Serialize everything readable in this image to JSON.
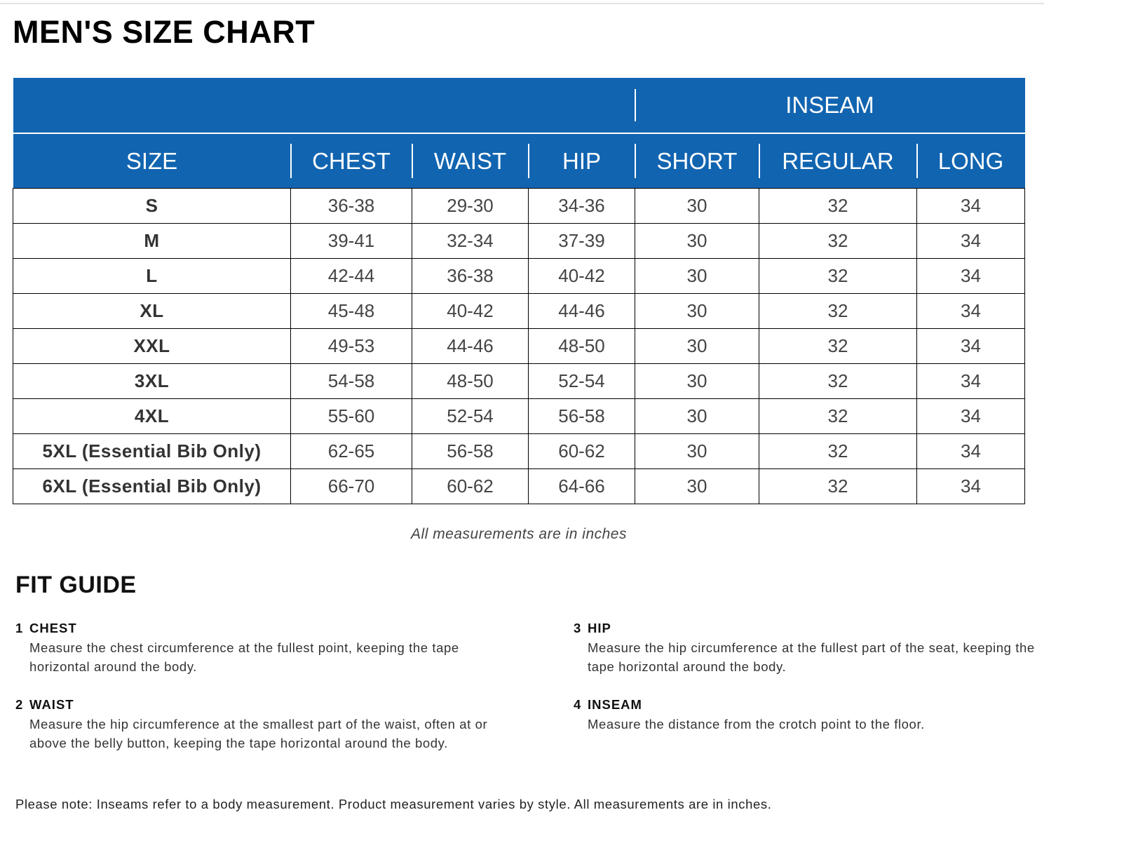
{
  "title": "MEN'S SIZE CHART",
  "table": {
    "group_header": "INSEAM",
    "columns": [
      "SIZE",
      "CHEST",
      "WAIST",
      "HIP",
      "SHORT",
      "REGULAR",
      "LONG"
    ],
    "rows": [
      [
        "S",
        "36-38",
        "29-30",
        "34-36",
        "30",
        "32",
        "34"
      ],
      [
        "M",
        "39-41",
        "32-34",
        "37-39",
        "30",
        "32",
        "34"
      ],
      [
        "L",
        "42-44",
        "36-38",
        "40-42",
        "30",
        "32",
        "34"
      ],
      [
        "XL",
        "45-48",
        "40-42",
        "44-46",
        "30",
        "32",
        "34"
      ],
      [
        "XXL",
        "49-53",
        "44-46",
        "48-50",
        "30",
        "32",
        "34"
      ],
      [
        "3XL",
        "54-58",
        "48-50",
        "52-54",
        "30",
        "32",
        "34"
      ],
      [
        "4XL",
        "55-60",
        "52-54",
        "56-58",
        "30",
        "32",
        "34"
      ],
      [
        "5XL (Essential Bib Only)",
        "62-65",
        "56-58",
        "60-62",
        "30",
        "32",
        "34"
      ],
      [
        "6XL (Essential Bib Only)",
        "66-70",
        "60-62",
        "64-66",
        "30",
        "32",
        "34"
      ]
    ],
    "header_color": "#1164b0"
  },
  "measurement_note": "All measurements are in inches",
  "fit_guide": {
    "title": "FIT GUIDE",
    "items": [
      {
        "num": "1",
        "label": "CHEST",
        "line1": "Measure the chest circumference at the fullest point, keeping the tape",
        "line2": "horizontal around the body."
      },
      {
        "num": "2",
        "label": "WAIST",
        "line1": "Measure the hip circumference at the smallest part of the waist, often at or",
        "line2": "above the belly button, keeping the tape horizontal around the body."
      },
      {
        "num": "3",
        "label": "HIP",
        "line1": "Measure the hip circumference at the fullest part of the seat, keeping the",
        "line2": "tape horizontal around the body."
      },
      {
        "num": "4",
        "label": "INSEAM",
        "line1": "Measure the distance from the crotch point to the floor.",
        "line2": ""
      }
    ]
  },
  "footer_note": "Please note: Inseams refer to a body measurement. Product measurement varies by style. All measurements are in inches."
}
